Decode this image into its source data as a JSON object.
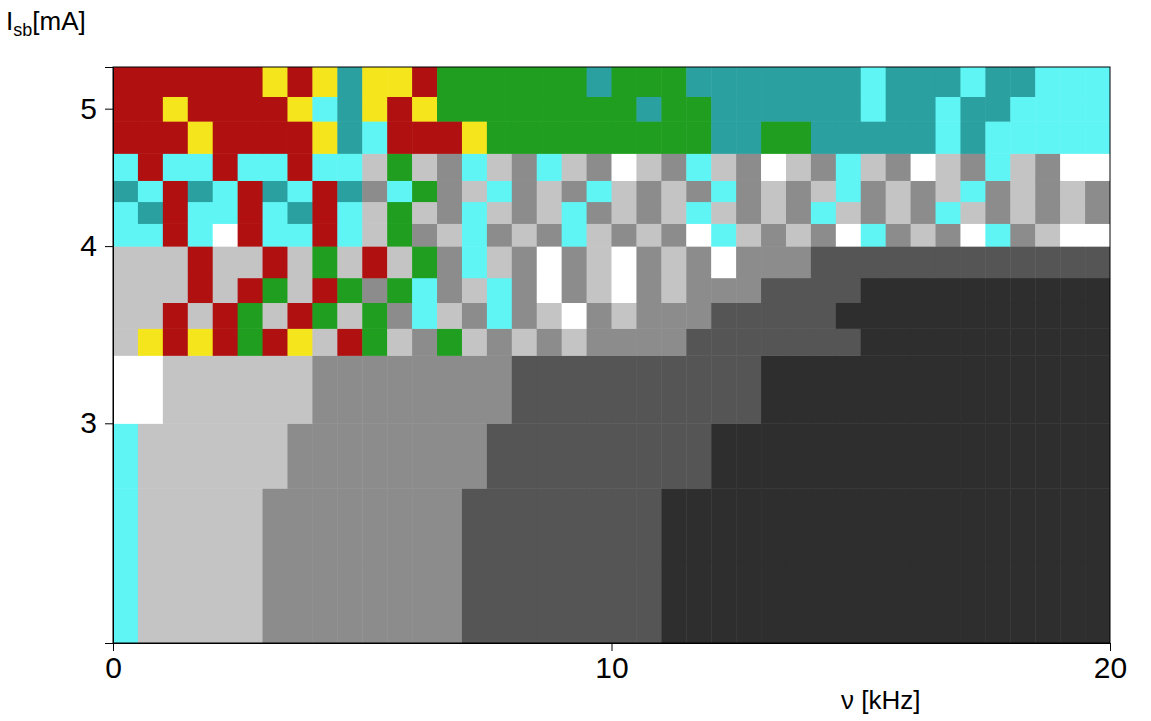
{
  "chart_data": {
    "type": "heatmap",
    "x_label": "ν [kHz]",
    "y_label": "Isb[mA]",
    "xlim": [
      0,
      20
    ],
    "xticks": [
      0,
      10,
      20
    ],
    "ylim": [
      2.1,
      5.35
    ],
    "yticks": [
      3,
      4,
      5
    ],
    "log": "y",
    "x_edges": [
      0,
      0.5,
      1,
      1.5,
      2,
      2.5,
      3,
      3.5,
      4,
      4.5,
      5,
      5.5,
      6,
      6.5,
      7,
      7.5,
      8,
      8.5,
      9,
      9.5,
      10,
      10.5,
      11,
      11.5,
      12,
      12.5,
      13,
      13.5,
      14,
      14.5,
      15,
      15.5,
      16,
      16.5,
      17,
      17.5,
      18,
      18.5,
      19,
      19.5,
      20
    ],
    "y_edges": [
      2.1,
      2.4,
      2.7,
      3.0,
      3.35,
      3.5,
      3.65,
      3.8,
      4.0,
      4.15,
      4.3,
      4.45,
      4.65,
      4.9,
      5.1,
      5.35
    ],
    "zlim": [
      0,
      9
    ],
    "colors": [
      "#2e2e2e",
      "#555555",
      "#8c8c8c",
      "#c4c4c4",
      "#ffffff",
      "#5ff5f5",
      "#2aa0a0",
      "#1f9e1f",
      "#f5e51c",
      "#b01010"
    ],
    "z": [
      [
        5,
        3,
        3,
        3,
        3,
        3,
        2,
        2,
        2,
        2,
        2,
        2,
        2,
        2,
        1,
        1,
        1,
        1,
        1,
        1,
        1,
        1,
        0,
        0,
        0,
        0,
        0,
        0,
        0,
        0,
        0,
        0,
        0,
        0,
        0,
        0,
        0,
        0,
        0,
        0
      ],
      [
        5,
        3,
        3,
        3,
        3,
        3,
        2,
        2,
        2,
        2,
        2,
        2,
        2,
        2,
        1,
        1,
        1,
        1,
        1,
        1,
        1,
        1,
        0,
        0,
        0,
        0,
        0,
        0,
        0,
        0,
        0,
        0,
        0,
        0,
        0,
        0,
        0,
        0,
        0,
        0
      ],
      [
        5,
        3,
        3,
        3,
        3,
        3,
        3,
        2,
        2,
        2,
        2,
        2,
        2,
        2,
        2,
        1,
        1,
        1,
        1,
        1,
        1,
        1,
        1,
        1,
        0,
        0,
        0,
        0,
        0,
        0,
        0,
        0,
        0,
        0,
        0,
        0,
        0,
        0,
        0,
        0
      ],
      [
        4,
        4,
        3,
        3,
        3,
        3,
        3,
        3,
        2,
        2,
        2,
        2,
        2,
        2,
        2,
        2,
        1,
        1,
        1,
        1,
        1,
        1,
        1,
        1,
        1,
        1,
        0,
        0,
        0,
        0,
        0,
        0,
        0,
        0,
        0,
        0,
        0,
        0,
        0,
        0
      ],
      [
        3,
        8,
        9,
        8,
        9,
        7,
        9,
        8,
        3,
        9,
        7,
        3,
        2,
        7,
        3,
        2,
        3,
        2,
        3,
        2,
        2,
        2,
        2,
        1,
        1,
        1,
        1,
        1,
        1,
        1,
        0,
        0,
        0,
        0,
        0,
        0,
        0,
        0,
        0,
        0
      ],
      [
        3,
        3,
        9,
        3,
        9,
        7,
        3,
        9,
        7,
        3,
        7,
        2,
        5,
        3,
        2,
        5,
        2,
        3,
        4,
        2,
        3,
        2,
        2,
        2,
        1,
        1,
        1,
        1,
        1,
        0,
        0,
        0,
        0,
        0,
        0,
        0,
        0,
        0,
        0,
        0
      ],
      [
        3,
        3,
        3,
        9,
        3,
        9,
        7,
        3,
        9,
        7,
        2,
        7,
        5,
        2,
        3,
        5,
        2,
        4,
        2,
        3,
        4,
        2,
        3,
        2,
        2,
        2,
        1,
        1,
        1,
        1,
        0,
        0,
        0,
        0,
        0,
        0,
        0,
        0,
        0,
        0
      ],
      [
        3,
        3,
        3,
        9,
        3,
        3,
        9,
        3,
        7,
        3,
        9,
        3,
        7,
        2,
        5,
        3,
        2,
        4,
        2,
        3,
        4,
        2,
        3,
        2,
        4,
        2,
        2,
        2,
        1,
        1,
        1,
        1,
        1,
        1,
        1,
        1,
        1,
        1,
        1,
        1
      ],
      [
        5,
        5,
        9,
        5,
        4,
        9,
        5,
        5,
        9,
        5,
        3,
        7,
        2,
        3,
        5,
        2,
        3,
        2,
        5,
        3,
        2,
        3,
        2,
        4,
        5,
        3,
        2,
        3,
        2,
        4,
        5,
        2,
        3,
        2,
        4,
        5,
        2,
        3,
        4,
        4
      ],
      [
        5,
        6,
        9,
        5,
        5,
        9,
        5,
        6,
        9,
        5,
        3,
        7,
        3,
        2,
        5,
        3,
        2,
        3,
        5,
        2,
        3,
        2,
        3,
        5,
        3,
        2,
        3,
        2,
        5,
        3,
        2,
        3,
        2,
        5,
        3,
        2,
        3,
        2,
        3,
        2
      ],
      [
        6,
        5,
        9,
        6,
        5,
        9,
        6,
        5,
        9,
        6,
        2,
        5,
        7,
        2,
        3,
        5,
        2,
        3,
        2,
        5,
        3,
        2,
        3,
        2,
        5,
        2,
        3,
        2,
        3,
        5,
        2,
        3,
        2,
        3,
        5,
        2,
        3,
        2,
        3,
        2
      ],
      [
        5,
        9,
        5,
        5,
        9,
        5,
        5,
        9,
        5,
        5,
        3,
        7,
        3,
        2,
        5,
        3,
        2,
        5,
        3,
        2,
        4,
        3,
        2,
        5,
        3,
        2,
        4,
        3,
        2,
        5,
        3,
        2,
        4,
        3,
        2,
        5,
        3,
        2,
        4,
        4
      ],
      [
        9,
        9,
        9,
        8,
        9,
        9,
        9,
        9,
        8,
        6,
        5,
        9,
        9,
        9,
        8,
        7,
        7,
        7,
        7,
        7,
        7,
        7,
        7,
        7,
        6,
        6,
        7,
        7,
        6,
        6,
        6,
        6,
        6,
        5,
        6,
        5,
        5,
        5,
        5,
        5
      ],
      [
        9,
        9,
        8,
        9,
        9,
        9,
        9,
        8,
        5,
        6,
        8,
        9,
        8,
        7,
        7,
        7,
        7,
        7,
        7,
        7,
        7,
        6,
        7,
        7,
        6,
        6,
        6,
        6,
        6,
        6,
        5,
        6,
        6,
        5,
        6,
        6,
        5,
        5,
        5,
        5
      ],
      [
        9,
        9,
        9,
        9,
        9,
        9,
        8,
        9,
        8,
        6,
        8,
        8,
        9,
        7,
        7,
        7,
        7,
        7,
        7,
        6,
        7,
        7,
        7,
        6,
        6,
        6,
        6,
        6,
        6,
        6,
        5,
        6,
        6,
        6,
        5,
        6,
        6,
        5,
        5,
        5
      ]
    ]
  }
}
